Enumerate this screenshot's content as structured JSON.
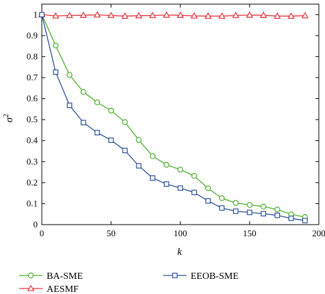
{
  "chart_data": {
    "type": "line",
    "title": "",
    "xlabel": "k",
    "ylabel": "σ2",
    "ylabel_main": "σ",
    "ylabel_sup": "2",
    "xlim": [
      0,
      200
    ],
    "ylim": [
      0,
      1.05
    ],
    "xticks": [
      0,
      50,
      100,
      150,
      200
    ],
    "yticks": [
      0,
      0.1,
      0.2,
      0.3,
      0.4,
      0.5,
      0.6,
      0.7,
      0.8,
      0.9,
      1
    ],
    "ytick_labels": [
      "0",
      "0.1",
      "0.2",
      "0.3",
      "0.4",
      "0.5",
      "0.6",
      "0.7",
      "0.8",
      "0.9",
      "1"
    ],
    "xtick_labels": [
      "0",
      "50",
      "100",
      "150",
      "200"
    ],
    "grid": false,
    "x": [
      0,
      10,
      20,
      30,
      40,
      50,
      60,
      70,
      80,
      90,
      100,
      110,
      120,
      130,
      140,
      150,
      160,
      170,
      180,
      190
    ],
    "series": [
      {
        "name": "BA-SME",
        "color": "#4caf2e",
        "marker": "circle",
        "values": [
          1.0,
          0.853,
          0.713,
          0.632,
          0.582,
          0.543,
          0.488,
          0.403,
          0.326,
          0.285,
          0.262,
          0.232,
          0.173,
          0.126,
          0.103,
          0.094,
          0.086,
          0.072,
          0.049,
          0.036
        ]
      },
      {
        "name": "AESMF",
        "color": "#e8303a",
        "marker": "triangle",
        "values": [
          1.0,
          0.994,
          0.996,
          0.997,
          0.999,
          0.996,
          0.993,
          0.995,
          0.996,
          0.998,
          0.997,
          0.994,
          0.993,
          0.993,
          0.996,
          0.998,
          0.997,
          0.993,
          0.993,
          0.995
        ]
      },
      {
        "name": "EEOB-SME",
        "color": "#2e4f9c",
        "marker": "square",
        "values": [
          1.0,
          0.726,
          0.568,
          0.486,
          0.438,
          0.402,
          0.353,
          0.28,
          0.222,
          0.193,
          0.174,
          0.153,
          0.113,
          0.079,
          0.064,
          0.058,
          0.052,
          0.044,
          0.03,
          0.019
        ]
      }
    ],
    "legend_placement": "bottom"
  }
}
